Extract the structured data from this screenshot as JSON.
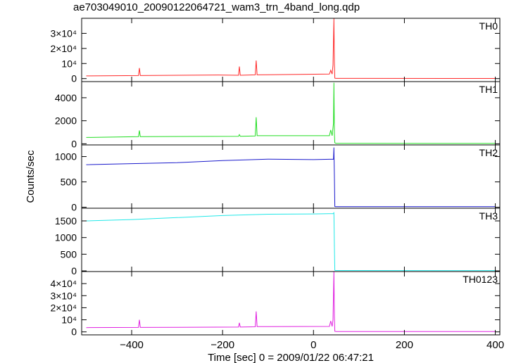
{
  "title": "ae703049010_20090122064721_wam3_trn_4band_long.qdp",
  "xlabel": "Time [sec] 0 = 2009/01/22 06:47:21",
  "ylabel": "Counts/sec",
  "chart_data": {
    "type": "line",
    "xlim": [
      -510,
      410
    ],
    "x_ticks": [
      -400,
      -200,
      0,
      200,
      400
    ],
    "x_tick_labels": [
      "−400",
      "−200",
      "0",
      "200",
      "400"
    ],
    "grid": false,
    "series": [
      {
        "name": "TH0",
        "color": "#ff2a2a",
        "ylim": [
          -2000,
          40000
        ],
        "y_ticks": [
          0,
          10000,
          20000,
          30000
        ],
        "y_tick_labels": [
          "0",
          "10⁴",
          "2×10⁴",
          "3×10⁴"
        ],
        "x": [
          -500,
          -385,
          -383,
          -381,
          -210,
          -165,
          -163,
          -161,
          -128,
          -126,
          -124,
          35,
          38,
          41,
          43,
          45,
          46,
          47,
          48,
          50,
          400
        ],
        "y": [
          1800,
          2000,
          7000,
          2000,
          2400,
          2200,
          8000,
          2200,
          2500,
          12000,
          2500,
          3000,
          5500,
          3000,
          9000,
          40000,
          10000,
          300,
          200,
          150,
          100
        ]
      },
      {
        "name": "TH1",
        "color": "#22dd22",
        "ylim": [
          -100,
          5400
        ],
        "y_ticks": [
          0,
          2000,
          4000
        ],
        "y_tick_labels": [
          "0",
          "2000",
          "4000"
        ],
        "x": [
          -500,
          -385,
          -383,
          -381,
          -165,
          -163,
          -161,
          -128,
          -126,
          -124,
          35,
          38,
          41,
          44,
          45,
          46,
          47,
          48,
          50,
          400
        ],
        "y": [
          550,
          620,
          1150,
          620,
          650,
          800,
          650,
          680,
          2300,
          700,
          700,
          1200,
          700,
          1800,
          5300,
          900,
          80,
          60,
          40,
          30
        ]
      },
      {
        "name": "TH2",
        "color": "#1a1acc",
        "ylim": [
          -20,
          1230
        ],
        "y_ticks": [
          0,
          500,
          1000
        ],
        "y_tick_labels": [
          "0",
          "500",
          "1000"
        ],
        "x": [
          -500,
          -400,
          -300,
          -200,
          -100,
          0,
          44,
          45,
          46,
          47,
          48,
          400
        ],
        "y": [
          840,
          860,
          880,
          920,
          950,
          940,
          950,
          1180,
          600,
          15,
          12,
          10
        ]
      },
      {
        "name": "TH3",
        "color": "#22e8e8",
        "ylim": [
          -20,
          1880
        ],
        "y_ticks": [
          0,
          500,
          1000,
          1500
        ],
        "y_tick_labels": [
          "0",
          "500",
          "1000",
          "1500"
        ],
        "x": [
          -500,
          -400,
          -300,
          -200,
          -100,
          0,
          44,
          45,
          46,
          47,
          48,
          400
        ],
        "y": [
          1500,
          1540,
          1600,
          1660,
          1700,
          1710,
          1720,
          1760,
          700,
          15,
          12,
          10
        ]
      },
      {
        "name": "TH0123",
        "color": "#e020e0",
        "ylim": [
          -2500,
          50000
        ],
        "y_ticks": [
          0,
          10000,
          20000,
          30000,
          40000
        ],
        "y_tick_labels": [
          "0",
          "10⁴",
          "2×10⁴",
          "3×10⁴",
          "4×10⁴"
        ],
        "x": [
          -500,
          -385,
          -383,
          -381,
          -165,
          -163,
          -161,
          -128,
          -126,
          -124,
          35,
          38,
          41,
          43,
          45,
          46,
          47,
          48,
          50,
          400
        ],
        "y": [
          3500,
          3700,
          10000,
          3700,
          4000,
          7500,
          4000,
          4200,
          17000,
          4300,
          4500,
          9000,
          4500,
          10000,
          50000,
          12000,
          500,
          400,
          300,
          250
        ]
      }
    ]
  }
}
